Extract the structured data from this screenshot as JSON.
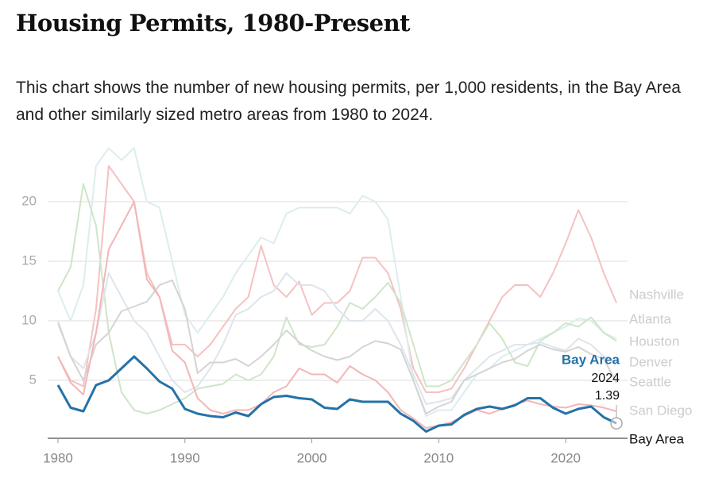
{
  "chart_data": {
    "type": "line",
    "title": "Housing Permits, 1980-Present",
    "subtitle": "This chart shows the number of new housing permits, per 1,000 residents, in the Bay Area and other similarly sized metro areas from 1980 to 2024.",
    "x": [
      1980,
      1981,
      1982,
      1983,
      1984,
      1985,
      1986,
      1987,
      1988,
      1989,
      1990,
      1991,
      1992,
      1993,
      1994,
      1995,
      1996,
      1997,
      1998,
      1999,
      2000,
      2001,
      2002,
      2003,
      2004,
      2005,
      2006,
      2007,
      2008,
      2009,
      2010,
      2011,
      2012,
      2013,
      2014,
      2015,
      2016,
      2017,
      2018,
      2019,
      2020,
      2021,
      2022,
      2023,
      2024
    ],
    "xlim": [
      1979,
      2025
    ],
    "xticks": [
      1980,
      1990,
      2000,
      2010,
      2020
    ],
    "ylim": [
      0,
      25
    ],
    "yticks": [
      5,
      10,
      15,
      20
    ],
    "grid": true,
    "series": [
      {
        "name": "Bay Area",
        "color": "#2472a8",
        "values": [
          4.6,
          2.7,
          2.4,
          4.6,
          5.0,
          6.0,
          7.0,
          6.0,
          4.9,
          4.3,
          2.6,
          2.2,
          2.0,
          1.9,
          2.3,
          2.0,
          3.0,
          3.6,
          3.7,
          3.5,
          3.4,
          2.7,
          2.6,
          3.4,
          3.2,
          3.2,
          3.2,
          2.2,
          1.6,
          0.7,
          1.2,
          1.3,
          2.1,
          2.6,
          2.8,
          2.6,
          2.9,
          3.5,
          3.5,
          2.7,
          2.2,
          2.6,
          2.8,
          1.9,
          1.39
        ]
      },
      {
        "name": "Nashville",
        "color": "#f5c2c2",
        "values": [
          7,
          5,
          4.5,
          11,
          23,
          21.5,
          20,
          14,
          12,
          8,
          8,
          7,
          8,
          9.5,
          11,
          12,
          16.3,
          13,
          12,
          13.3,
          10.5,
          11.5,
          11.5,
          12.5,
          15.3,
          15.3,
          14,
          11,
          6,
          4,
          4,
          4.3,
          6,
          8,
          10,
          12,
          13,
          13,
          12,
          14,
          16.5,
          19.3,
          17,
          14,
          11.5
        ]
      },
      {
        "name": "Atlanta",
        "color": "#dcedef",
        "values": [
          12.5,
          10,
          13,
          23,
          24.5,
          23.5,
          24.5,
          20,
          19.5,
          15,
          10.5,
          9,
          10.5,
          12,
          14,
          15.5,
          17,
          16.5,
          19,
          19.5,
          19.5,
          19.5,
          19.5,
          19,
          20.5,
          20,
          18.5,
          12,
          5,
          2,
          2.5,
          2.5,
          4,
          5.5,
          6,
          7,
          7.5,
          8,
          8.5,
          9,
          9.5,
          10.2,
          10,
          9,
          8.5
        ]
      },
      {
        "name": "Houston",
        "color": "#cfe5c8",
        "values": [
          12.5,
          14.5,
          21.5,
          18,
          9,
          4,
          2.5,
          2.2,
          2.5,
          3,
          3.5,
          4.3,
          4.5,
          4.7,
          5.5,
          5,
          5.5,
          7,
          10.3,
          8,
          7.8,
          8,
          9.5,
          11.5,
          11,
          12,
          13.2,
          11.5,
          8,
          4.5,
          4.5,
          5,
          6.5,
          8,
          9.8,
          8.5,
          6.5,
          6.2,
          8.3,
          9,
          9.8,
          9.5,
          10.3,
          9,
          8.3
        ]
      },
      {
        "name": "Denver",
        "color": "#dde5ec",
        "values": [
          10,
          7,
          6,
          9,
          14,
          12,
          10,
          9,
          7,
          5,
          4,
          4.5,
          6,
          8,
          10.5,
          11,
          12,
          12.5,
          14,
          13,
          13,
          12.5,
          11,
          10,
          10,
          11,
          10,
          8,
          5.5,
          3,
          3.2,
          3.5,
          5,
          6,
          7,
          7.5,
          8,
          8,
          8.2,
          7.8,
          7.5,
          8.5,
          8,
          7,
          6.5
        ]
      },
      {
        "name": "Seattle",
        "color": "#d4d4d4",
        "values": [
          9.8,
          7,
          5,
          8,
          9,
          10.8,
          11.2,
          11.6,
          13,
          13.4,
          11,
          5.6,
          6.5,
          6.5,
          6.8,
          6.2,
          7,
          8,
          9.2,
          8.2,
          7.5,
          7,
          6.7,
          7,
          7.8,
          8.3,
          8.1,
          7.6,
          5,
          2.2,
          2.8,
          3.2,
          5,
          5.5,
          6,
          6.5,
          6.8,
          7.5,
          8,
          7.6,
          7.4,
          7.8,
          7.2,
          6.8,
          4.8
        ]
      },
      {
        "name": "San Diego",
        "color": "#f3b6b6",
        "values": [
          7,
          4.8,
          3.8,
          9,
          16,
          18,
          20,
          13.5,
          12,
          7.5,
          6.5,
          3.5,
          2.5,
          2.2,
          2.5,
          2.5,
          3,
          4,
          4.5,
          6,
          5.5,
          5.5,
          4.8,
          6.2,
          5.5,
          5,
          4,
          2.5,
          1.8,
          1,
          1.2,
          1.5,
          2,
          2.5,
          2.2,
          2.6,
          3,
          3.3,
          3,
          2.8,
          2.7,
          3,
          2.9,
          2.7,
          2.4
        ]
      }
    ]
  }
}
